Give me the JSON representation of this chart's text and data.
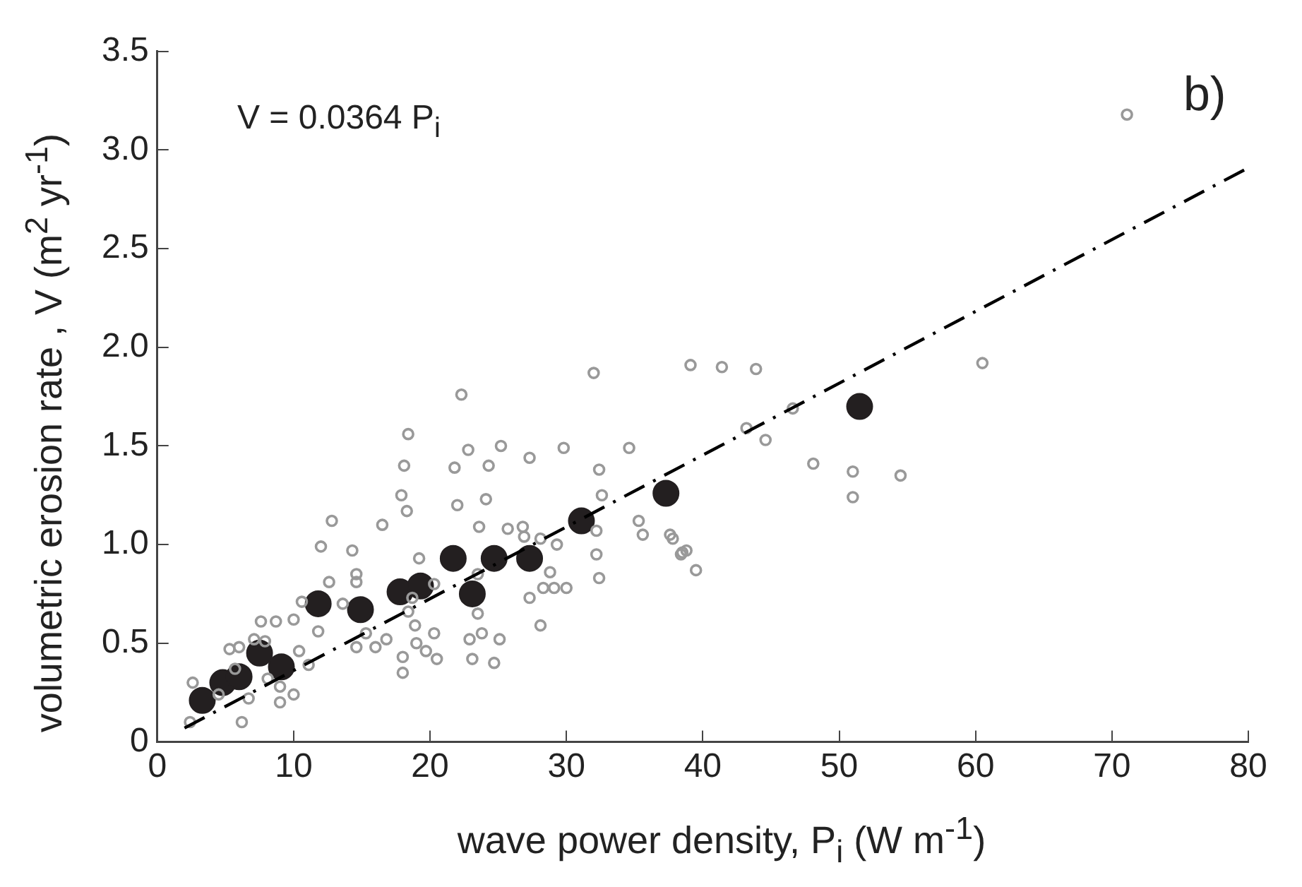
{
  "chart_data": {
    "type": "scatter",
    "xlabel": "wave power density,  P$_{i}$ (W m$^{-1}$)",
    "ylabel": "volumetric erosion rate , V (m$^{2}$ yr$^{-1}$)",
    "annotations": [
      "V = 0.0364 P$_{i}$",
      "b)"
    ],
    "xlim": [
      0,
      80
    ],
    "xticks": [
      0,
      10,
      20,
      30,
      40,
      50,
      60,
      70,
      80
    ],
    "ylim": [
      0,
      3.5
    ],
    "yticks": [
      0,
      {
        "value": 0.5,
        "label": "0.5"
      },
      {
        "value": 1,
        "label": "1.0"
      },
      {
        "value": 1.5,
        "label": "1.5"
      },
      {
        "value": 2,
        "label": "2.0"
      },
      {
        "value": 2.5,
        "label": "2.5"
      },
      {
        "value": 3,
        "label": "3.0"
      },
      {
        "value": 3.5,
        "label": "3.5"
      }
    ],
    "grid": false,
    "legend": false,
    "marker": "circle",
    "series": [
      {
        "color": "#999999",
        "x": [
          22.3,
          18.4,
          22.8,
          25.2,
          18.1,
          21.8,
          24.3,
          17.9,
          18.3,
          22.0,
          24.1,
          12.8,
          16.5,
          23.6,
          25.7,
          12.0,
          14.3,
          19.2,
          14.6,
          14.6,
          12.6,
          10.6,
          13.6,
          18.7,
          20.3,
          23.5,
          7.6,
          8.7,
          10.0,
          11.8,
          15.3,
          16.8,
          18.4,
          18.9,
          20.3,
          23.8,
          25.1,
          5.3,
          6.0,
          7.1,
          7.9,
          10.4,
          14.6,
          16.0,
          19.0,
          19.7,
          20.5,
          18.0,
          18.0,
          23.1,
          24.7,
          2.6,
          5.7,
          8.1,
          9.0,
          10.0,
          9.0,
          6.7,
          6.2,
          2.4,
          4.5,
          11.1,
          32.0,
          39.1,
          41.4,
          29.8,
          34.6,
          27.3,
          32.4,
          32.6,
          35.3,
          35.6,
          37.6,
          38.8,
          38.4,
          39.5,
          32.2,
          32.2,
          32.4,
          29.3,
          28.1,
          28.8,
          26.8,
          26.9,
          28.3,
          29.1,
          30.0,
          27.3,
          28.1,
          23.5,
          22.9,
          60.5,
          43.2,
          44.6,
          46.6,
          48.1,
          51.0,
          51.0,
          54.5,
          37.8,
          38.5,
          43.9,
          71.1
        ],
        "values": [
          1.76,
          1.56,
          1.48,
          1.5,
          1.4,
          1.39,
          1.4,
          1.25,
          1.17,
          1.2,
          1.23,
          1.12,
          1.1,
          1.09,
          1.08,
          0.99,
          0.97,
          0.93,
          0.85,
          0.81,
          0.81,
          0.71,
          0.7,
          0.73,
          0.8,
          0.85,
          0.61,
          0.61,
          0.62,
          0.56,
          0.55,
          0.52,
          0.66,
          0.59,
          0.55,
          0.55,
          0.52,
          0.47,
          0.48,
          0.52,
          0.51,
          0.46,
          0.48,
          0.48,
          0.5,
          0.46,
          0.42,
          0.43,
          0.35,
          0.42,
          0.4,
          0.3,
          0.37,
          0.32,
          0.28,
          0.24,
          0.2,
          0.22,
          0.1,
          0.1,
          0.24,
          0.39,
          1.87,
          1.91,
          1.9,
          1.49,
          1.49,
          1.44,
          1.38,
          1.25,
          1.12,
          1.05,
          1.05,
          0.97,
          0.95,
          0.87,
          1.07,
          0.95,
          0.83,
          1.0,
          1.03,
          0.86,
          1.09,
          1.04,
          0.78,
          0.78,
          0.78,
          0.73,
          0.59,
          0.65,
          0.52,
          1.92,
          1.59,
          1.53,
          1.69,
          1.41,
          1.37,
          1.24,
          1.35,
          1.03,
          0.96,
          1.89,
          3.18
        ]
      },
      {
        "color": "#231f20",
        "x": [
          3.3,
          4.8,
          6.0,
          7.5,
          9.1,
          11.8,
          14.9,
          17.8,
          19.3,
          21.7,
          23.1,
          24.7,
          27.3,
          31.1,
          37.3,
          51.5
        ],
        "values": [
          0.21,
          0.3,
          0.33,
          0.45,
          0.38,
          0.7,
          0.67,
          0.76,
          0.79,
          0.93,
          0.75,
          0.93,
          0.93,
          1.12,
          1.26,
          1.7
        ]
      },
      {
        "type": "line",
        "color": "#000000",
        "line_style": "dashed",
        "marker": "none",
        "x": [
          2,
          80
        ],
        "values": [
          0.07,
          2.91
        ]
      }
    ]
  }
}
